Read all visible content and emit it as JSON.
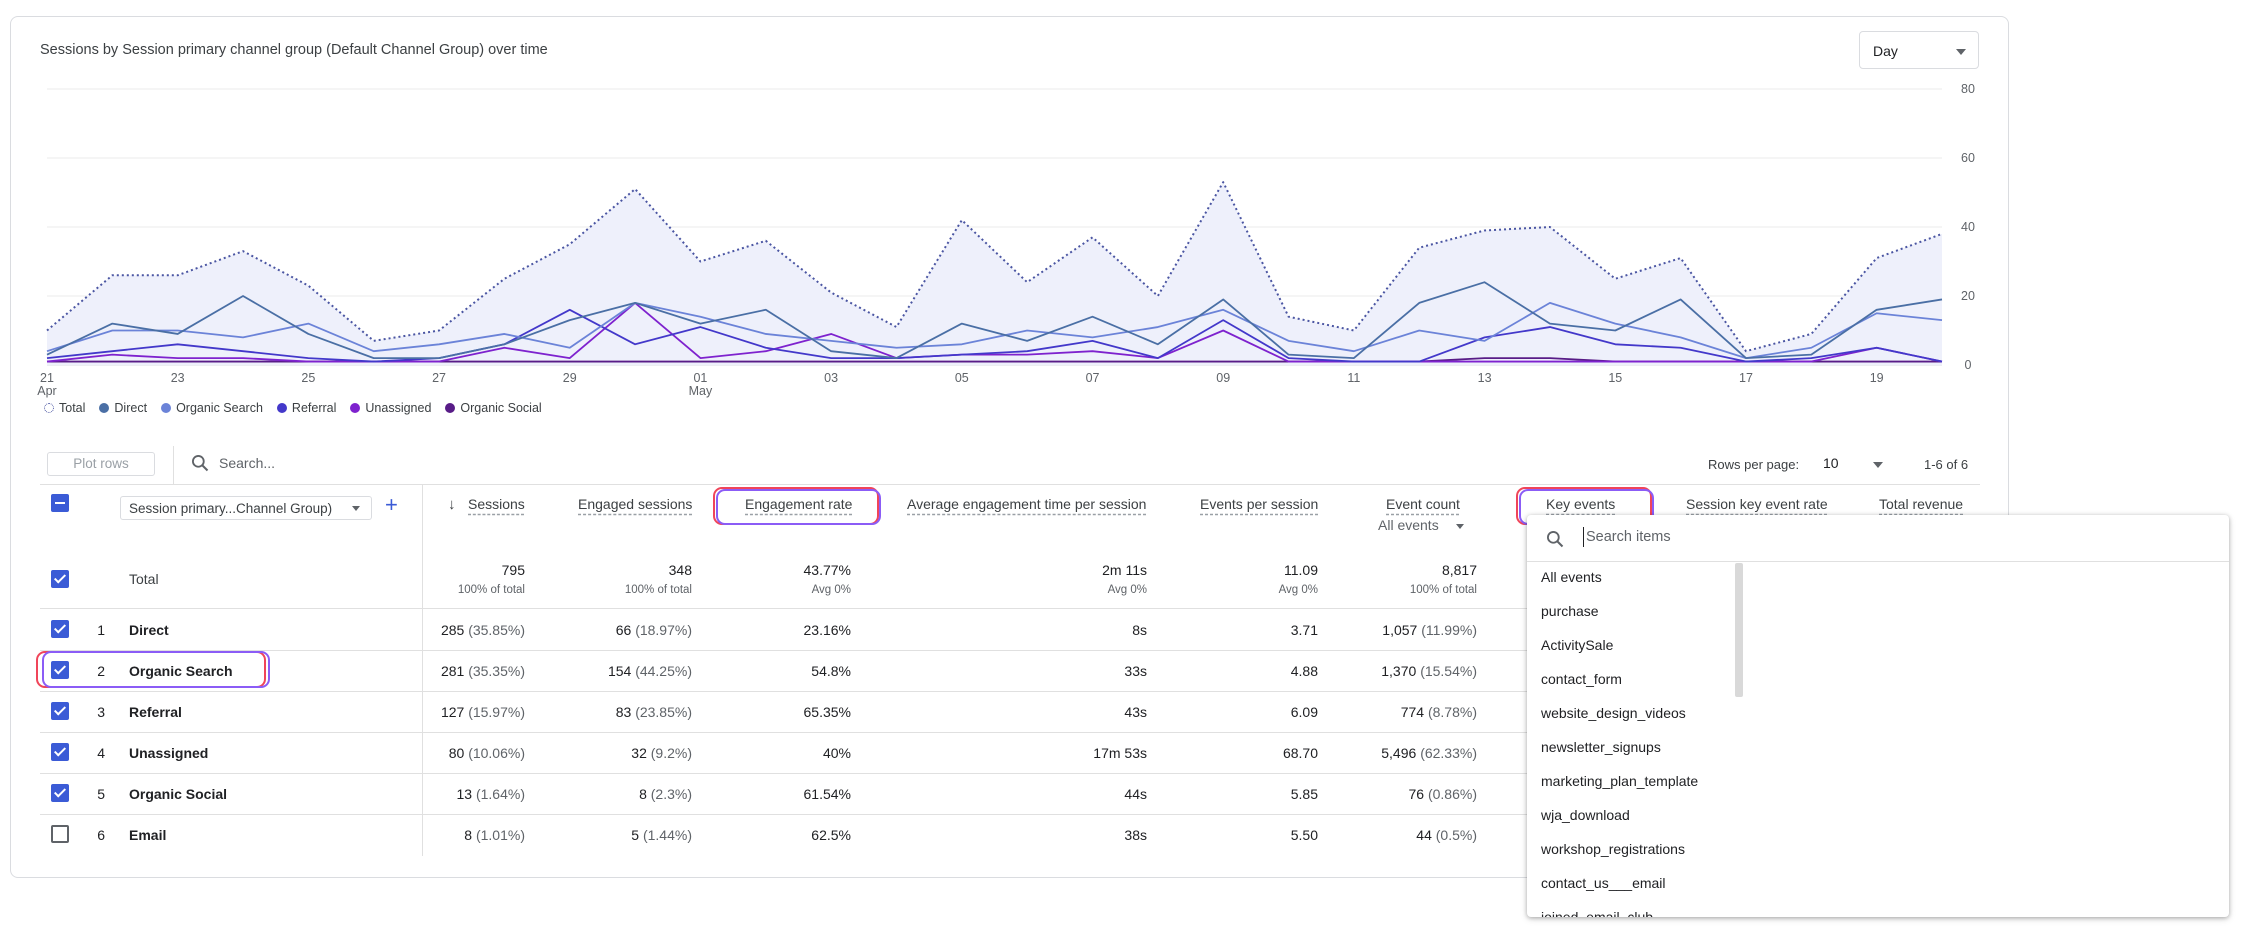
{
  "chart_card": {
    "title": "Sessions by Session primary channel group (Default Channel Group) over time",
    "granularity": "Day"
  },
  "chart_data": {
    "type": "line",
    "x": [
      "Apr 21",
      "Apr 22",
      "Apr 23",
      "Apr 24",
      "Apr 25",
      "Apr 26",
      "Apr 27",
      "Apr 28",
      "Apr 29",
      "Apr 30",
      "May 01",
      "May 02",
      "May 03",
      "May 04",
      "May 05",
      "May 06",
      "May 07",
      "May 08",
      "May 09",
      "May 10",
      "May 11",
      "May 12",
      "May 13",
      "May 14",
      "May 15",
      "May 16",
      "May 17",
      "May 18",
      "May 19",
      "May 20"
    ],
    "x_tick_labels": [
      "21",
      "23",
      "25",
      "27",
      "29",
      "01",
      "03",
      "05",
      "07",
      "09",
      "11",
      "13",
      "15",
      "17",
      "19"
    ],
    "x_month_labels": [
      {
        "tick": "21",
        "month": "Apr"
      },
      {
        "tick": "01",
        "month": "May"
      }
    ],
    "y_ticks": [
      "80",
      "60",
      "40",
      "20",
      "0"
    ],
    "ylim": [
      0,
      80
    ],
    "y_axis_side": "right",
    "grid": true,
    "legend_position": "bottom-left",
    "series": [
      {
        "name": "Total",
        "style": "dotted-area",
        "color": "#4a55a2",
        "values": [
          10,
          26,
          26,
          33,
          23,
          7,
          10,
          25,
          35,
          51,
          30,
          36,
          21,
          11,
          42,
          24,
          37,
          20,
          53,
          14,
          10,
          34,
          39,
          40,
          25,
          31,
          4,
          9,
          31,
          38
        ]
      },
      {
        "name": "Direct",
        "color": "#4a6fa5",
        "values": [
          3,
          12,
          9,
          20,
          9,
          2,
          2,
          6,
          13,
          18,
          12,
          16,
          4,
          2,
          12,
          7,
          14,
          6,
          19,
          3,
          2,
          18,
          24,
          12,
          10,
          19,
          2,
          3,
          16,
          19
        ]
      },
      {
        "name": "Organic Search",
        "color": "#6b83d8",
        "values": [
          4,
          10,
          10,
          8,
          12,
          4,
          6,
          9,
          5,
          18,
          14,
          9,
          7,
          5,
          6,
          10,
          8,
          11,
          16,
          7,
          4,
          10,
          7,
          18,
          12,
          8,
          2,
          5,
          15,
          13
        ]
      },
      {
        "name": "Referral",
        "color": "#4338ca",
        "values": [
          2,
          4,
          6,
          4,
          2,
          1,
          2,
          6,
          16,
          6,
          11,
          5,
          2,
          2,
          3,
          4,
          7,
          2,
          13,
          2,
          1,
          1,
          8,
          11,
          6,
          5,
          1,
          2,
          5,
          1
        ]
      },
      {
        "name": "Unassigned",
        "color": "#7e22ce",
        "values": [
          1,
          3,
          2,
          2,
          1,
          1,
          1,
          5,
          2,
          18,
          2,
          4,
          9,
          2,
          3,
          3,
          4,
          2,
          10,
          1,
          1,
          1,
          1,
          1,
          1,
          1,
          1,
          1,
          5,
          1
        ]
      },
      {
        "name": "Organic Social",
        "color": "#581c87",
        "values": [
          1,
          1,
          1,
          1,
          1,
          1,
          1,
          1,
          1,
          1,
          1,
          1,
          1,
          1,
          1,
          1,
          1,
          1,
          1,
          1,
          1,
          1,
          2,
          2,
          1,
          1,
          1,
          1,
          1,
          1
        ]
      }
    ]
  },
  "legend": [
    "Total",
    "Direct",
    "Organic Search",
    "Referral",
    "Unassigned",
    "Organic Social"
  ],
  "colors": {
    "accent": "#3b5bd6",
    "highlight_red": "#f0455a",
    "highlight_purple": "#8b5cf6"
  },
  "toolbar": {
    "plot_rows_label": "Plot rows",
    "search_placeholder": "Search...",
    "rows_per_page_label": "Rows per page:",
    "rows_per_page_value": "10",
    "pagination": "1-6 of 6"
  },
  "table": {
    "dimension_label": "Session primary...Channel Group)",
    "columns": {
      "sessions": "Sessions",
      "engaged": "Engaged sessions",
      "engrate": "Engagement rate",
      "avgtime": "Average engagement time per session",
      "eps": "Events per session",
      "evcount": "Event count",
      "evcount_filter": "All events",
      "keyev": "Key events",
      "skerate": "Session key event rate",
      "revenue": "Total revenue"
    },
    "total": {
      "label": "Total",
      "sessions": "795",
      "sessions_sub": "100% of total",
      "engaged": "348",
      "engaged_sub": "100% of total",
      "engrate": "43.77%",
      "engrate_sub": "Avg 0%",
      "avgtime": "2m 11s",
      "avgtime_sub": "Avg 0%",
      "eps": "11.09",
      "eps_sub": "Avg 0%",
      "evcount": "8,817",
      "evcount_sub": "100% of total"
    },
    "rows": [
      {
        "num": "1",
        "name": "Direct",
        "checked": true,
        "sessions": "285",
        "sessions_pct": "(35.85%)",
        "engaged": "66",
        "engaged_pct": "(18.97%)",
        "engrate": "23.16%",
        "avgtime": "8s",
        "eps": "3.71",
        "evcount": "1,057",
        "evcount_pct": "(11.99%)"
      },
      {
        "num": "2",
        "name": "Organic Search",
        "checked": true,
        "sessions": "281",
        "sessions_pct": "(35.35%)",
        "engaged": "154",
        "engaged_pct": "(44.25%)",
        "engrate": "54.8%",
        "avgtime": "33s",
        "eps": "4.88",
        "evcount": "1,370",
        "evcount_pct": "(15.54%)"
      },
      {
        "num": "3",
        "name": "Referral",
        "checked": true,
        "sessions": "127",
        "sessions_pct": "(15.97%)",
        "engaged": "83",
        "engaged_pct": "(23.85%)",
        "engrate": "65.35%",
        "avgtime": "43s",
        "eps": "6.09",
        "evcount": "774",
        "evcount_pct": "(8.78%)"
      },
      {
        "num": "4",
        "name": "Unassigned",
        "checked": true,
        "sessions": "80",
        "sessions_pct": "(10.06%)",
        "engaged": "32",
        "engaged_pct": "(9.2%)",
        "engrate": "40%",
        "avgtime": "17m 53s",
        "eps": "68.70",
        "evcount": "5,496",
        "evcount_pct": "(62.33%)"
      },
      {
        "num": "5",
        "name": "Organic Social",
        "checked": true,
        "sessions": "13",
        "sessions_pct": "(1.64%)",
        "engaged": "8",
        "engaged_pct": "(2.3%)",
        "engrate": "61.54%",
        "avgtime": "44s",
        "eps": "5.85",
        "evcount": "76",
        "evcount_pct": "(0.86%)"
      },
      {
        "num": "6",
        "name": "Email",
        "checked": false,
        "sessions": "8",
        "sessions_pct": "(1.01%)",
        "engaged": "5",
        "engaged_pct": "(1.44%)",
        "engrate": "62.5%",
        "avgtime": "38s",
        "eps": "5.50",
        "evcount": "44",
        "evcount_pct": "(0.5%)"
      }
    ]
  },
  "dropdown": {
    "search_placeholder": "Search items",
    "items": [
      "All events",
      "purchase",
      "ActivitySale",
      "contact_form",
      "website_design_videos",
      "newsletter_signups",
      "marketing_plan_template",
      "wja_download",
      "workshop_registrations",
      "contact_us___email",
      "joined_email_club"
    ]
  },
  "icons": {
    "search": "search-icon",
    "sort": "arrow-down-icon",
    "add": "plus-icon",
    "dropdown": "chevron-down-icon"
  }
}
